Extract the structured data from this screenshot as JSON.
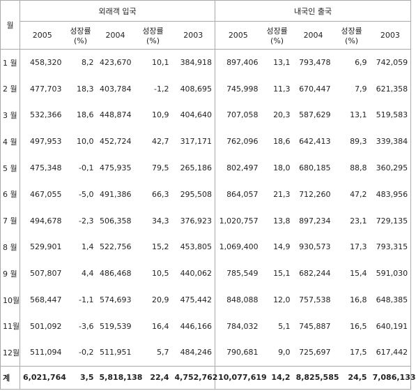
{
  "table": {
    "header": {
      "month": "월",
      "groups": [
        "외래객 입국",
        "내국인 출국"
      ],
      "columns": [
        [
          "2005"
        ],
        [
          "성장률",
          "(%)"
        ],
        [
          "2004"
        ],
        [
          "성장률",
          "(%)"
        ],
        [
          "2003"
        ],
        [
          "2005"
        ],
        [
          "성장률",
          "(%)"
        ],
        [
          "2004"
        ],
        [
          "성장률",
          "(%)"
        ],
        [
          "2003"
        ]
      ]
    },
    "rows": [
      {
        "label": "1 월",
        "cells": [
          "458,320",
          "8,2",
          "423,670",
          "10,1",
          "384,918",
          "897,406",
          "13,1",
          "793,478",
          "6,9",
          "742,059"
        ]
      },
      {
        "label": "2 월",
        "cells": [
          "477,703",
          "18,3",
          "403,784",
          "-1,2",
          "408,695",
          "745,998",
          "11,3",
          "670,447",
          "7,9",
          "621,358"
        ]
      },
      {
        "label": "3 월",
        "cells": [
          "532,366",
          "18,6",
          "448,874",
          "10,9",
          "404,640",
          "707,058",
          "20,3",
          "587,629",
          "13,1",
          "519,583"
        ]
      },
      {
        "label": "4 월",
        "cells": [
          "497,953",
          "10,0",
          "452,724",
          "42,7",
          "317,171",
          "762,096",
          "18,6",
          "642,413",
          "89,3",
          "339,384"
        ]
      },
      {
        "label": "5 월",
        "cells": [
          "475,348",
          "-0,1",
          "475,935",
          "79,5",
          "265,186",
          "802,497",
          "18,0",
          "680,185",
          "88,8",
          "360,295"
        ]
      },
      {
        "label": "6 월",
        "cells": [
          "467,055",
          "-5,0",
          "491,386",
          "66,3",
          "295,508",
          "864,057",
          "21,3",
          "712,260",
          "47,2",
          "483,956"
        ]
      },
      {
        "label": "7 월",
        "cells": [
          "494,678",
          "-2,3",
          "506,358",
          "34,3",
          "376,923",
          "1,020,757",
          "13,8",
          "897,234",
          "23,1",
          "729,135"
        ]
      },
      {
        "label": "8 월",
        "cells": [
          "529,901",
          "1,4",
          "522,756",
          "15,2",
          "453,805",
          "1,069,400",
          "14,9",
          "930,573",
          "17,3",
          "793,315"
        ]
      },
      {
        "label": "9 월",
        "cells": [
          "507,807",
          "4,4",
          "486,468",
          "10,5",
          "440,062",
          "785,549",
          "15,1",
          "682,244",
          "15,4",
          "591,030"
        ]
      },
      {
        "label": "10월",
        "cells": [
          "568,447",
          "-1,1",
          "574,693",
          "20,9",
          "475,442",
          "848,088",
          "12,0",
          "757,538",
          "16,8",
          "648,385"
        ]
      },
      {
        "label": "11월",
        "cells": [
          "501,092",
          "-3,6",
          "519,539",
          "16,4",
          "446,166",
          "784,032",
          "5,1",
          "745,887",
          "16,5",
          "640,191"
        ]
      },
      {
        "label": "12월",
        "cells": [
          "511,094",
          "-0,2",
          "511,951",
          "5,7",
          "484,246",
          "790,681",
          "9,0",
          "725,697",
          "17,5",
          "617,442"
        ]
      }
    ],
    "total": {
      "label": "계",
      "cells": [
        "6,021,764",
        "3,5",
        "5,818,138",
        "22,4",
        "4,752,762",
        "10,077,619",
        "14,2",
        "8,825,585",
        "24,5",
        "7,086,133"
      ]
    }
  }
}
